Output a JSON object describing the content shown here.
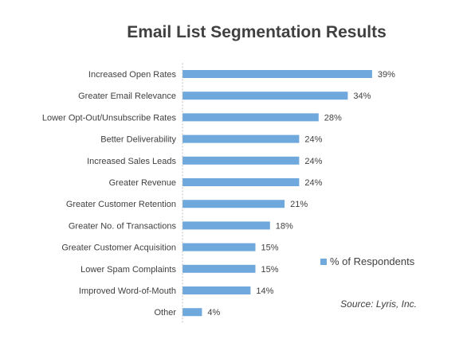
{
  "chart_data": {
    "type": "bar",
    "orientation": "horizontal",
    "title": "Email List Segmentation Results",
    "categories": [
      "Increased Open Rates",
      "Greater Email Relevance",
      "Lower Opt-Out/Unsubscribe Rates",
      "Better Deliverability",
      "Increased Sales Leads",
      "Greater Revenue",
      "Greater Customer Retention",
      "Greater No. of Transactions",
      "Greater Customer Acquisition",
      "Lower Spam Complaints",
      "Improved Word-of-Mouth",
      "Other"
    ],
    "series": [
      {
        "name": "% of Respondents",
        "values": [
          39,
          34,
          28,
          24,
          24,
          24,
          21,
          18,
          15,
          15,
          14,
          4
        ],
        "data_labels": [
          "39%",
          "34%",
          "28%",
          "24%",
          "24%",
          "24%",
          "21%",
          "18%",
          "15%",
          "15%",
          "14%",
          "4%"
        ]
      }
    ],
    "xlim": [
      0,
      50
    ],
    "grid": false,
    "legend": {
      "placement": "right",
      "label": "% of Respondents"
    },
    "source": "Source: Lyris, Inc.",
    "colors": {
      "bar": "#6fa8dc",
      "text": "#404040",
      "title": "#404040",
      "axis": "#bfbfbf"
    }
  }
}
